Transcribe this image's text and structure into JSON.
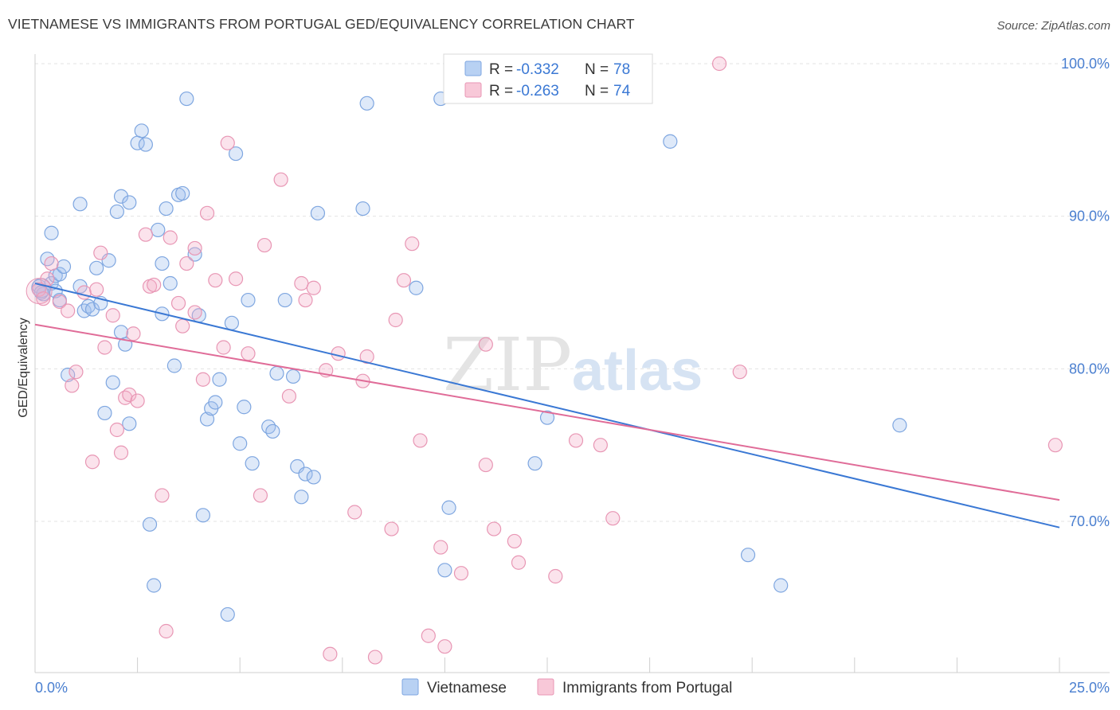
{
  "header": {
    "title": "VIETNAMESE VS IMMIGRANTS FROM PORTUGAL GED/EQUIVALENCY CORRELATION CHART",
    "source": "Source: ZipAtlas.com"
  },
  "watermark": {
    "zip": "ZIP",
    "atlas": "atlas"
  },
  "legend": {
    "rows": [
      {
        "r_label": "R =",
        "r_value": "-0.332",
        "n_label": "N =",
        "n_value": "78"
      },
      {
        "r_label": "R =",
        "r_value": "-0.263",
        "n_label": "N =",
        "n_value": "74"
      }
    ]
  },
  "bottom_legend": {
    "items": [
      {
        "label": "Vietnamese",
        "fill": "#b8d1f3",
        "stroke": "#7ea6e0"
      },
      {
        "label": "Immigrants from Portugal",
        "fill": "#f8c8d8",
        "stroke": "#e896b4"
      }
    ]
  },
  "colors": {
    "blue_point_fill": "rgba(160,192,238,0.35)",
    "blue_point_stroke": "#7ea6e0",
    "blue_line": "#3a78d4",
    "pink_point_fill": "rgba(244,176,200,0.35)",
    "pink_point_stroke": "#e896b4",
    "pink_line": "#e06c98",
    "value_text": "#3a78d4",
    "label_text": "#333333",
    "grid": "#e3e3e3"
  },
  "chart_data": {
    "type": "scatter",
    "title": "VIETNAMESE VS IMMIGRANTS FROM PORTUGAL GED/EQUIVALENCY CORRELATION CHART",
    "xlabel": "",
    "ylabel": "GED/Equivalency",
    "xlim": [
      0,
      25
    ],
    "ylim": [
      60,
      101
    ],
    "x_tick_labels": [
      "0.0%",
      "25.0%"
    ],
    "y_ticks": [
      70,
      80,
      90,
      100
    ],
    "y_tick_labels": [
      "70.0%",
      "80.0%",
      "90.0%",
      "100.0%"
    ],
    "grid": true,
    "legend_position": "top-center",
    "series": [
      {
        "name": "Vietnamese",
        "r": -0.332,
        "n": 78,
        "trend": {
          "x": [
            0,
            25
          ],
          "y": [
            85.6,
            69.6
          ]
        },
        "points": [
          [
            0.1,
            85.4
          ],
          [
            0.2,
            84.9
          ],
          [
            0.3,
            87.2
          ],
          [
            0.4,
            88.9
          ],
          [
            0.4,
            85.6
          ],
          [
            0.5,
            86.1
          ],
          [
            0.5,
            85.1
          ],
          [
            0.6,
            84.5
          ],
          [
            0.6,
            86.2
          ],
          [
            0.7,
            86.7
          ],
          [
            0.8,
            79.6
          ],
          [
            1.1,
            90.8
          ],
          [
            1.1,
            85.4
          ],
          [
            1.2,
            83.8
          ],
          [
            1.3,
            84.1
          ],
          [
            1.4,
            83.9
          ],
          [
            1.5,
            86.6
          ],
          [
            1.6,
            84.3
          ],
          [
            1.7,
            77.1
          ],
          [
            1.8,
            87.1
          ],
          [
            1.9,
            79.1
          ],
          [
            2.0,
            90.3
          ],
          [
            2.1,
            91.3
          ],
          [
            2.1,
            82.4
          ],
          [
            2.2,
            81.6
          ],
          [
            2.3,
            90.9
          ],
          [
            2.3,
            76.4
          ],
          [
            2.5,
            94.8
          ],
          [
            2.6,
            95.6
          ],
          [
            2.7,
            94.7
          ],
          [
            2.8,
            69.8
          ],
          [
            2.9,
            65.8
          ],
          [
            3.0,
            89.1
          ],
          [
            3.1,
            86.9
          ],
          [
            3.1,
            83.6
          ],
          [
            3.2,
            90.5
          ],
          [
            3.3,
            85.6
          ],
          [
            3.4,
            80.2
          ],
          [
            3.5,
            91.4
          ],
          [
            3.6,
            91.5
          ],
          [
            3.7,
            97.7
          ],
          [
            3.9,
            87.5
          ],
          [
            4.0,
            83.5
          ],
          [
            4.1,
            70.4
          ],
          [
            4.2,
            76.7
          ],
          [
            4.3,
            77.4
          ],
          [
            4.4,
            77.8
          ],
          [
            4.5,
            79.3
          ],
          [
            4.7,
            63.9
          ],
          [
            4.8,
            83.0
          ],
          [
            4.9,
            94.1
          ],
          [
            5.0,
            75.1
          ],
          [
            5.1,
            77.5
          ],
          [
            5.2,
            84.5
          ],
          [
            5.3,
            73.8
          ],
          [
            5.7,
            76.2
          ],
          [
            5.8,
            75.9
          ],
          [
            5.9,
            79.7
          ],
          [
            6.1,
            84.5
          ],
          [
            6.3,
            79.5
          ],
          [
            6.4,
            73.6
          ],
          [
            6.5,
            71.6
          ],
          [
            6.6,
            73.1
          ],
          [
            6.8,
            72.9
          ],
          [
            6.9,
            90.2
          ],
          [
            8.0,
            90.5
          ],
          [
            8.1,
            97.4
          ],
          [
            9.3,
            85.3
          ],
          [
            9.9,
            97.7
          ],
          [
            10.0,
            66.8
          ],
          [
            10.1,
            70.9
          ],
          [
            12.2,
            73.8
          ],
          [
            12.5,
            76.8
          ],
          [
            15.5,
            94.9
          ],
          [
            17.4,
            67.8
          ],
          [
            18.2,
            65.8
          ],
          [
            21.1,
            76.3
          ],
          [
            0.15,
            85.0
          ]
        ]
      },
      {
        "name": "Immigrants from Portugal",
        "r": -0.263,
        "n": 74,
        "trend": {
          "x": [
            0,
            25
          ],
          "y": [
            82.9,
            71.4
          ]
        },
        "points": [
          [
            0.1,
            85.2
          ],
          [
            0.2,
            84.6
          ],
          [
            0.3,
            85.9
          ],
          [
            0.4,
            86.9
          ],
          [
            0.6,
            84.4
          ],
          [
            0.8,
            83.8
          ],
          [
            0.9,
            78.9
          ],
          [
            1.0,
            79.8
          ],
          [
            1.2,
            85.0
          ],
          [
            1.4,
            73.9
          ],
          [
            1.5,
            85.2
          ],
          [
            1.6,
            87.6
          ],
          [
            1.7,
            81.4
          ],
          [
            1.9,
            83.5
          ],
          [
            2.0,
            76.0
          ],
          [
            2.1,
            74.5
          ],
          [
            2.2,
            78.1
          ],
          [
            2.3,
            78.3
          ],
          [
            2.4,
            82.3
          ],
          [
            2.5,
            77.9
          ],
          [
            2.7,
            88.8
          ],
          [
            2.8,
            85.4
          ],
          [
            2.9,
            85.5
          ],
          [
            3.1,
            71.7
          ],
          [
            3.2,
            62.8
          ],
          [
            3.3,
            88.6
          ],
          [
            3.5,
            84.3
          ],
          [
            3.6,
            82.8
          ],
          [
            3.7,
            86.9
          ],
          [
            3.9,
            87.9
          ],
          [
            3.9,
            83.7
          ],
          [
            4.1,
            79.3
          ],
          [
            4.2,
            90.2
          ],
          [
            4.4,
            85.8
          ],
          [
            4.6,
            81.4
          ],
          [
            4.7,
            94.8
          ],
          [
            4.9,
            85.9
          ],
          [
            5.2,
            81.0
          ],
          [
            5.5,
            71.7
          ],
          [
            5.6,
            88.1
          ],
          [
            6.0,
            92.4
          ],
          [
            6.2,
            78.2
          ],
          [
            6.5,
            85.6
          ],
          [
            6.6,
            84.5
          ],
          [
            6.8,
            85.3
          ],
          [
            7.1,
            79.9
          ],
          [
            7.2,
            61.3
          ],
          [
            7.4,
            81.0
          ],
          [
            7.8,
            70.6
          ],
          [
            8.0,
            79.2
          ],
          [
            8.1,
            80.8
          ],
          [
            8.3,
            61.1
          ],
          [
            8.7,
            69.5
          ],
          [
            8.8,
            83.2
          ],
          [
            9.0,
            85.8
          ],
          [
            9.2,
            88.2
          ],
          [
            9.4,
            75.3
          ],
          [
            9.6,
            62.5
          ],
          [
            9.9,
            68.3
          ],
          [
            10.0,
            61.8
          ],
          [
            10.4,
            66.6
          ],
          [
            11.0,
            81.6
          ],
          [
            11.0,
            73.7
          ],
          [
            11.2,
            69.5
          ],
          [
            11.7,
            68.7
          ],
          [
            11.8,
            67.3
          ],
          [
            12.7,
            66.4
          ],
          [
            13.2,
            75.3
          ],
          [
            13.6,
            100.0
          ],
          [
            13.8,
            75.0
          ],
          [
            14.1,
            70.2
          ],
          [
            16.7,
            100.0
          ],
          [
            17.2,
            79.8
          ],
          [
            24.9,
            75.0
          ]
        ]
      }
    ]
  }
}
